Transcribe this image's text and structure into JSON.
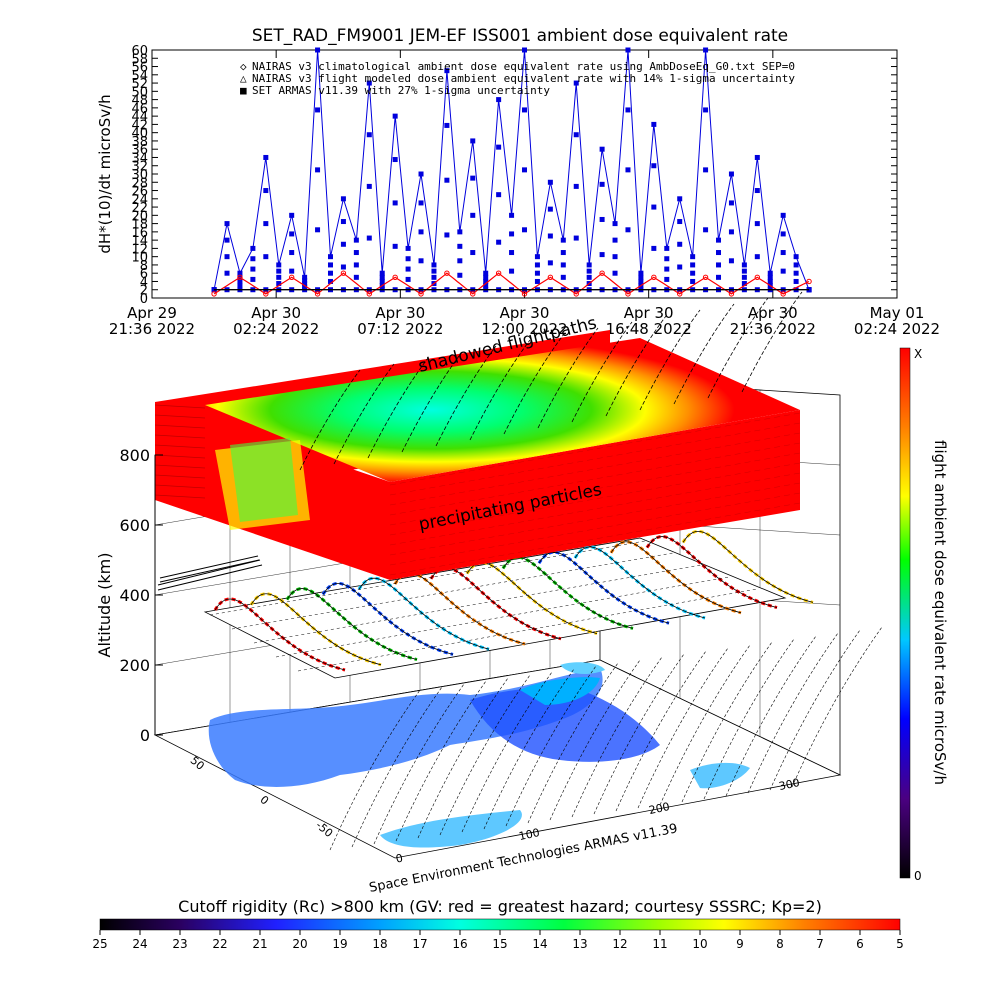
{
  "top_chart": {
    "title": "SET_RAD_FM9001  JEM-EF ISS001 ambient dose equivalent rate",
    "ylabel": "dH*(10)/dt microSv/h",
    "yticks": [
      "0",
      "2",
      "4",
      "6",
      "8",
      "10",
      "12",
      "14",
      "16",
      "18",
      "20",
      "22",
      "24",
      "26",
      "28",
      "30",
      "32",
      "34",
      "36",
      "38",
      "40",
      "42",
      "44",
      "46",
      "48",
      "50",
      "52",
      "54",
      "56",
      "58",
      "60"
    ],
    "xticks": [
      {
        "line1": "Apr 29",
        "line2": "21:36 2022"
      },
      {
        "line1": "Apr 30",
        "line2": "02:24 2022"
      },
      {
        "line1": "Apr 30",
        "line2": "07:12 2022"
      },
      {
        "line1": "Apr 30",
        "line2": "12:00 2022"
      },
      {
        "line1": "Apr 30",
        "line2": "16:48 2022"
      },
      {
        "line1": "Apr 30",
        "line2": "21:36 2022"
      },
      {
        "line1": "May 01",
        "line2": "02:24 2022"
      }
    ],
    "legend": [
      "NAIRAS v3 climatological ambient dose equivalent rate using AmbDoseEq_G0.txt SEP=0",
      "NAIRAS v3 flight modeled dose ambient equivalent rate with 14% 1-sigma uncertainty",
      "SET ARMAS v11.39 with 27% 1-sigma uncertainty"
    ],
    "colors": {
      "armas": "#0000dd",
      "nairas_clim": "#ff0000",
      "nairas_flight": "#000000"
    }
  },
  "chart_data": [
    {
      "type": "line",
      "title": "SET_RAD_FM9001  JEM-EF ISS001 ambient dose equivalent rate",
      "xlabel": "",
      "ylabel": "dH*(10)/dt microSv/h",
      "ylim": [
        0,
        60
      ],
      "x_range": [
        "2022-04-29 21:36",
        "2022-05-01 02:24"
      ],
      "legend_position": "top",
      "grid": false,
      "series": [
        {
          "name": "SET ARMAS v11.39 with 27% 1-sigma uncertainty",
          "color": "#0000dd",
          "x": [
            "2022-04-30 00:00",
            "2022-04-30 00:30",
            "2022-04-30 01:00",
            "2022-04-30 01:30",
            "2022-04-30 02:00",
            "2022-04-30 02:30",
            "2022-04-30 03:00",
            "2022-04-30 03:30",
            "2022-04-30 04:00",
            "2022-04-30 04:30",
            "2022-04-30 05:00",
            "2022-04-30 05:30",
            "2022-04-30 06:00",
            "2022-04-30 06:30",
            "2022-04-30 07:00",
            "2022-04-30 07:30",
            "2022-04-30 08:00",
            "2022-04-30 08:30",
            "2022-04-30 09:00",
            "2022-04-30 09:30",
            "2022-04-30 10:00",
            "2022-04-30 10:30",
            "2022-04-30 11:00",
            "2022-04-30 11:30",
            "2022-04-30 12:00",
            "2022-04-30 12:30",
            "2022-04-30 13:00",
            "2022-04-30 13:30",
            "2022-04-30 14:00",
            "2022-04-30 14:30",
            "2022-04-30 15:00",
            "2022-04-30 15:30",
            "2022-04-30 16:00",
            "2022-04-30 16:30",
            "2022-04-30 17:00",
            "2022-04-30 17:30",
            "2022-04-30 18:00",
            "2022-04-30 18:30",
            "2022-04-30 19:00",
            "2022-04-30 19:30",
            "2022-04-30 20:00",
            "2022-04-30 20:30",
            "2022-04-30 21:00",
            "2022-04-30 21:30",
            "2022-04-30 22:00",
            "2022-04-30 22:30",
            "2022-04-30 23:00"
          ],
          "values": [
            2,
            18,
            6,
            12,
            34,
            8,
            20,
            5,
            60,
            10,
            24,
            14,
            52,
            6,
            44,
            12,
            30,
            8,
            55,
            16,
            38,
            6,
            48,
            20,
            60,
            10,
            28,
            14,
            52,
            8,
            36,
            18,
            60,
            6,
            42,
            12,
            24,
            10,
            60,
            14,
            30,
            8,
            34,
            6,
            20,
            10,
            2
          ]
        },
        {
          "name": "NAIRAS v3 climatological ambient dose equivalent rate using AmbDoseEq_G0.txt SEP=0",
          "color": "#ff0000",
          "x": [
            "2022-04-30 00:00",
            "2022-04-30 01:00",
            "2022-04-30 02:00",
            "2022-04-30 03:00",
            "2022-04-30 04:00",
            "2022-04-30 05:00",
            "2022-04-30 06:00",
            "2022-04-30 07:00",
            "2022-04-30 08:00",
            "2022-04-30 09:00",
            "2022-04-30 10:00",
            "2022-04-30 11:00",
            "2022-04-30 12:00",
            "2022-04-30 13:00",
            "2022-04-30 14:00",
            "2022-04-30 15:00",
            "2022-04-30 16:00",
            "2022-04-30 17:00",
            "2022-04-30 18:00",
            "2022-04-30 19:00",
            "2022-04-30 20:00",
            "2022-04-30 21:00",
            "2022-04-30 22:00",
            "2022-04-30 23:00"
          ],
          "values": [
            1,
            5,
            1,
            5,
            1,
            6,
            1,
            5,
            1,
            6,
            1,
            6,
            1,
            5,
            1,
            6,
            1,
            5,
            1,
            5,
            1,
            5,
            1,
            4
          ]
        },
        {
          "name": "NAIRAS v3 flight modeled dose ambient equivalent rate with 14% 1-sigma uncertainty",
          "color": "#000000",
          "x": [
            "2022-04-30 00:00",
            "2022-04-30 06:00",
            "2022-04-30 12:00",
            "2022-04-30 18:00",
            "2022-04-30 23:00"
          ],
          "values": [
            2,
            2,
            2,
            2,
            2
          ]
        }
      ]
    },
    {
      "type": "heatmap",
      "title": "",
      "ylabel": "Altitude (km)",
      "zticks": [
        "0",
        "200",
        "400",
        "600",
        "800"
      ],
      "colorbar_label": "flight ambient dose equivalent rate microSv/h",
      "colorbar_range": [
        "0",
        "X"
      ]
    }
  ],
  "globe": {
    "ylabel": "Altitude (km)",
    "zticks": [
      "0",
      "200",
      "400",
      "600",
      "800"
    ],
    "lat_ticks": [
      "50",
      "0",
      "-50"
    ],
    "lon_ticks": [
      "0",
      "100",
      "200",
      "300"
    ],
    "top_label": "shadowed flightpaths",
    "mid_label": "precipitating particles",
    "credit": "Space Environment Technologies ARMAS v11.39"
  },
  "right_colorbar": {
    "label": "flight ambient dose equivalent rate microSv/h",
    "top": "X",
    "bottom": "0",
    "colors": [
      "#000000",
      "#4b0082",
      "#0000ff",
      "#00c8ff",
      "#00ff00",
      "#ffff00",
      "#ff8000",
      "#ff0000"
    ]
  },
  "bottom_colorbar": {
    "title": "Cutoff rigidity (Rc) >800 km (GV: red = greatest hazard; courtesy SSSRC; Kp=2)",
    "ticks": [
      "25",
      "24",
      "23",
      "22",
      "21",
      "20",
      "19",
      "18",
      "17",
      "16",
      "15",
      "14",
      "13",
      "12",
      "11",
      "10",
      "9",
      "8",
      "7",
      "6",
      "5"
    ]
  }
}
